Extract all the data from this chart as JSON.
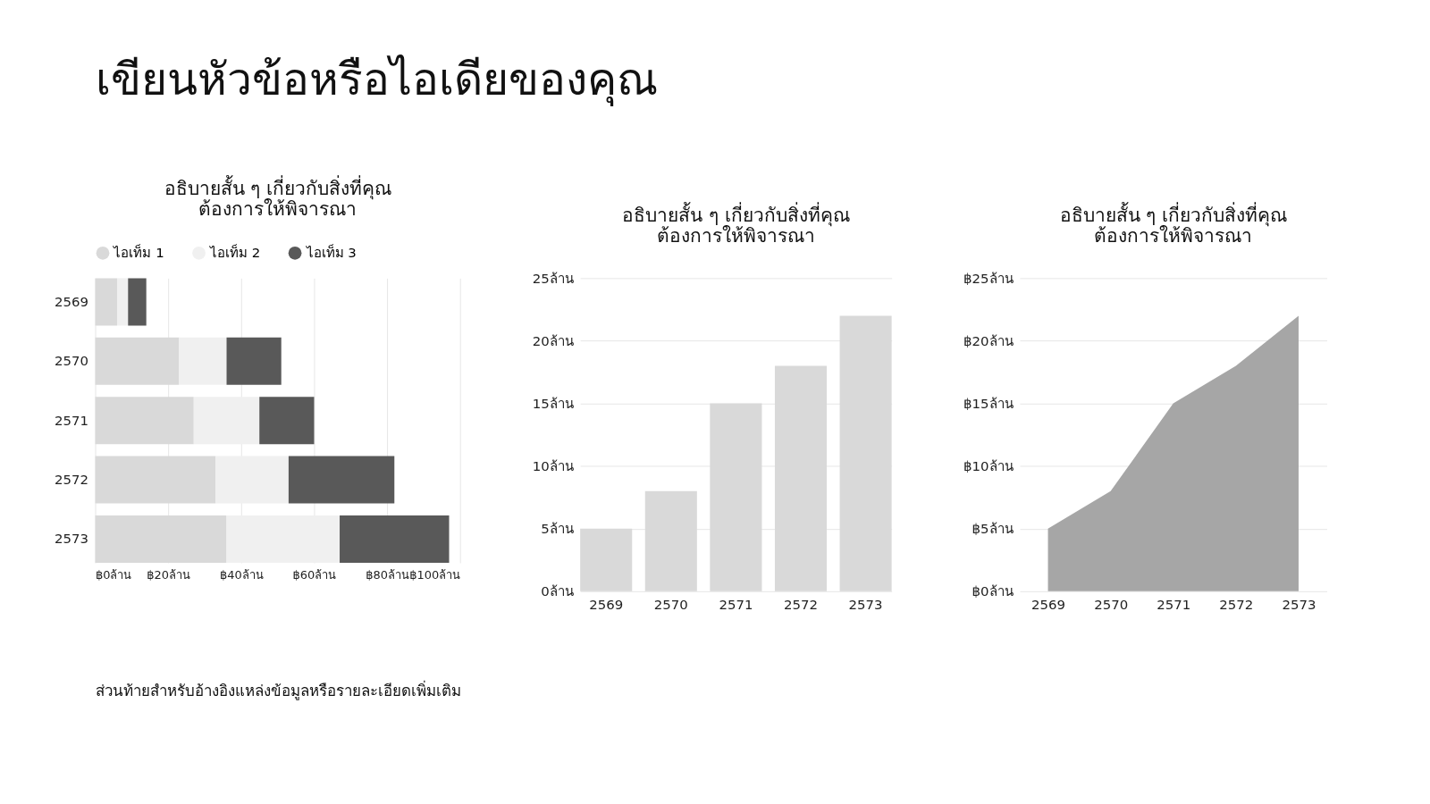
{
  "chart_data": [
    {
      "type": "other",
      "title": "เขียนหัวข้อหรือไอเดียของคุณ",
      "annotations": [
        "ส่วนท้ายสำหรับอ้างอิงแหล่งข้อมูลหรือรายละเอียดเพิ่มเติม"
      ]
    },
    {
      "type": "bar",
      "title": "อธิบายสั้น ๆ เกี่ยวกับสิ่งที่คุณ\nต้องการให้พิจารณา",
      "orientation": "horizontal",
      "stacked": true,
      "legend": "top",
      "grid": "x",
      "categories": [
        "2569",
        "2570",
        "2571",
        "2572",
        "2573"
      ],
      "series": [
        {
          "name": "ไอเท็ม 1",
          "color": "#d9d9d9",
          "values": [
            6,
            23,
            27,
            33,
            36
          ]
        },
        {
          "name": "ไอเท็ม 2",
          "color": "#f0f0f0",
          "values": [
            3,
            13,
            18,
            20,
            31
          ]
        },
        {
          "name": "ไอเท็ม 3",
          "color": "#595959",
          "values": [
            5,
            15,
            15,
            29,
            30
          ]
        }
      ],
      "xlim": [
        0,
        100
      ],
      "xticks": [
        {
          "value": 0,
          "label": "฿0ล้าน"
        },
        {
          "value": 20,
          "label": "฿20ล้าน"
        },
        {
          "value": 40,
          "label": "฿40ล้าน"
        },
        {
          "value": 60,
          "label": "฿60ล้าน"
        },
        {
          "value": 80,
          "label": "฿80ล้าน"
        },
        {
          "value": 100,
          "label": "฿100ล้าน"
        }
      ]
    },
    {
      "type": "bar",
      "title": "อธิบายสั้น ๆ เกี่ยวกับสิ่งที่คุณ\nต้องการให้พิจารณา",
      "grid": "y",
      "categories": [
        "2569",
        "2570",
        "2571",
        "2572",
        "2573"
      ],
      "series": [
        {
          "color": "#d9d9d9",
          "values": [
            5,
            8,
            15,
            18,
            22
          ]
        }
      ],
      "ylim": [
        0,
        25
      ],
      "yticks": [
        {
          "value": 0,
          "label": "0ล้าน"
        },
        {
          "value": 5,
          "label": "5ล้าน"
        },
        {
          "value": 10,
          "label": "10ล้าน"
        },
        {
          "value": 15,
          "label": "15ล้าน"
        },
        {
          "value": 20,
          "label": "20ล้าน"
        },
        {
          "value": 25,
          "label": "25ล้าน"
        }
      ]
    },
    {
      "type": "area",
      "title": "อธิบายสั้น ๆ เกี่ยวกับสิ่งที่คุณ\nต้องการให้พิจารณา",
      "grid": "y",
      "categories": [
        "2569",
        "2570",
        "2571",
        "2572",
        "2573"
      ],
      "series": [
        {
          "color": "#a6a6a6",
          "values": [
            5,
            8,
            15,
            18,
            22
          ]
        }
      ],
      "ylim": [
        0,
        25
      ],
      "yticks": [
        {
          "value": 0,
          "label": "฿0ล้าน"
        },
        {
          "value": 5,
          "label": "฿5ล้าน"
        },
        {
          "value": 10,
          "label": "฿10ล้าน"
        },
        {
          "value": 15,
          "label": "฿15ล้าน"
        },
        {
          "value": 20,
          "label": "฿20ล้าน"
        },
        {
          "value": 25,
          "label": "฿25ล้าน"
        }
      ]
    }
  ]
}
